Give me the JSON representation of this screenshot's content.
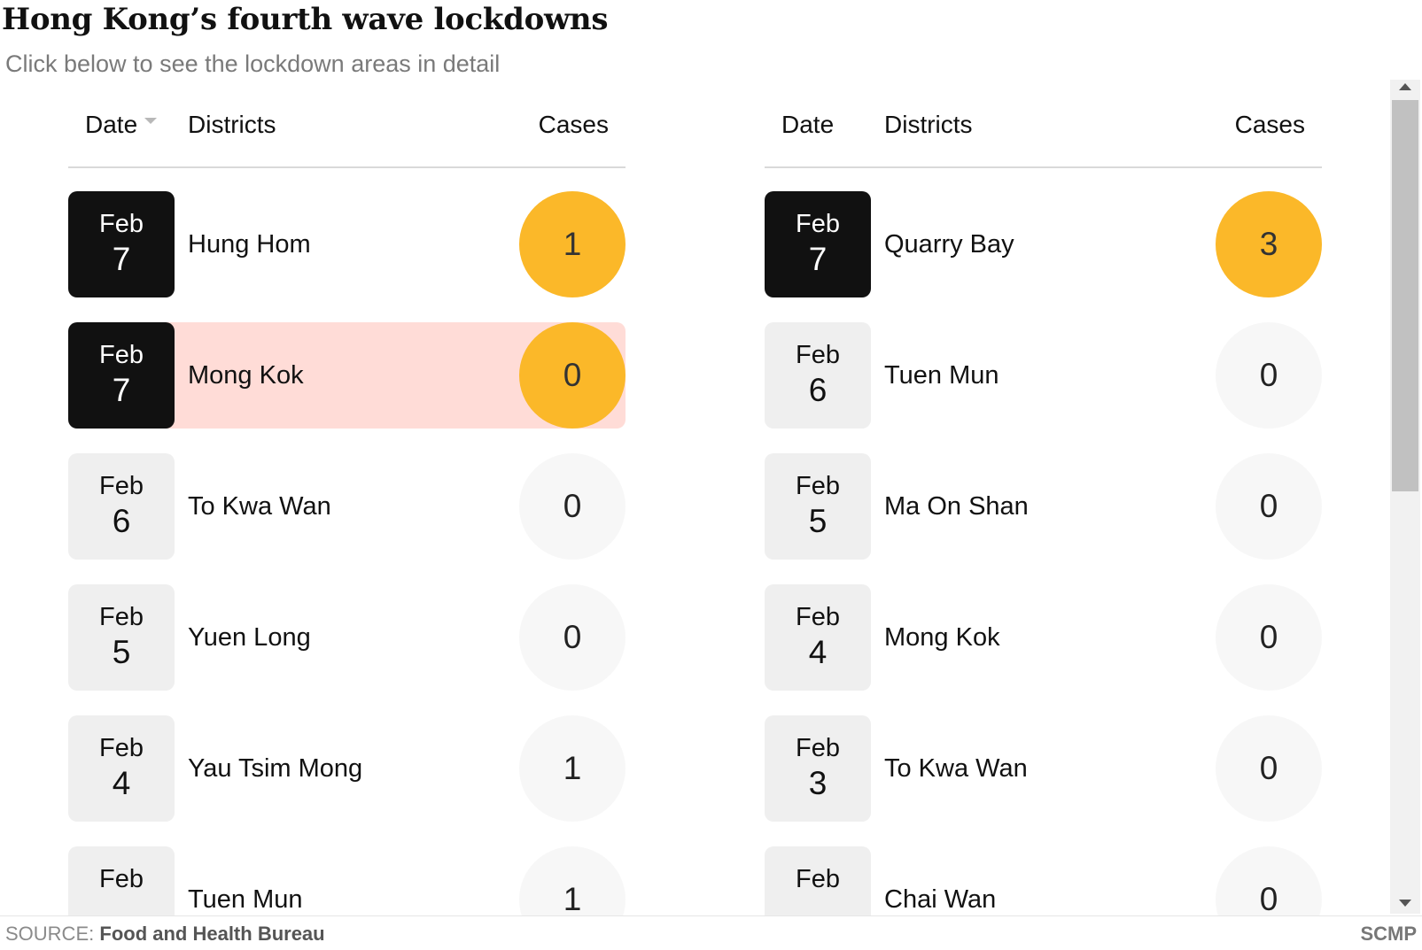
{
  "title": "Hong Kong’s fourth wave lockdowns",
  "subtitle": "Click below to see the lockdown areas in detail",
  "colors": {
    "accent": "#fbb829",
    "highlight": "#ffdcd7",
    "dark": "#111111"
  },
  "tables": [
    {
      "headers": {
        "date": "Date",
        "districts": "Districts",
        "cases": "Cases"
      },
      "rows": [
        {
          "month": "Feb",
          "day": "7",
          "district": "Hung Hom",
          "cases": "1"
        },
        {
          "month": "Feb",
          "day": "7",
          "district": "Mong Kok",
          "cases": "0"
        },
        {
          "month": "Feb",
          "day": "6",
          "district": "To Kwa Wan",
          "cases": "0"
        },
        {
          "month": "Feb",
          "day": "5",
          "district": "Yuen Long",
          "cases": "0"
        },
        {
          "month": "Feb",
          "day": "4",
          "district": "Yau Tsim Mong",
          "cases": "1"
        },
        {
          "month": "Feb",
          "day": "",
          "district": "Tuen Mun",
          "cases": "1"
        }
      ]
    },
    {
      "headers": {
        "date": "Date",
        "districts": "Districts",
        "cases": "Cases"
      },
      "rows": [
        {
          "month": "Feb",
          "day": "7",
          "district": "Quarry Bay",
          "cases": "3"
        },
        {
          "month": "Feb",
          "day": "6",
          "district": "Tuen Mun",
          "cases": "0"
        },
        {
          "month": "Feb",
          "day": "5",
          "district": "Ma On Shan",
          "cases": "0"
        },
        {
          "month": "Feb",
          "day": "4",
          "district": "Mong Kok",
          "cases": "0"
        },
        {
          "month": "Feb",
          "day": "3",
          "district": "To Kwa Wan",
          "cases": "0"
        },
        {
          "month": "Feb",
          "day": "",
          "district": "Chai Wan",
          "cases": "0"
        }
      ]
    }
  ],
  "footer": {
    "source_label": "SOURCE:",
    "source_name": "Food and Health Bureau",
    "brand": "SCMP"
  },
  "icons": {
    "sort": "sort-caret-icon",
    "scroll_up": "scroll-up-arrow-icon",
    "scroll_down": "scroll-down-arrow-icon"
  }
}
